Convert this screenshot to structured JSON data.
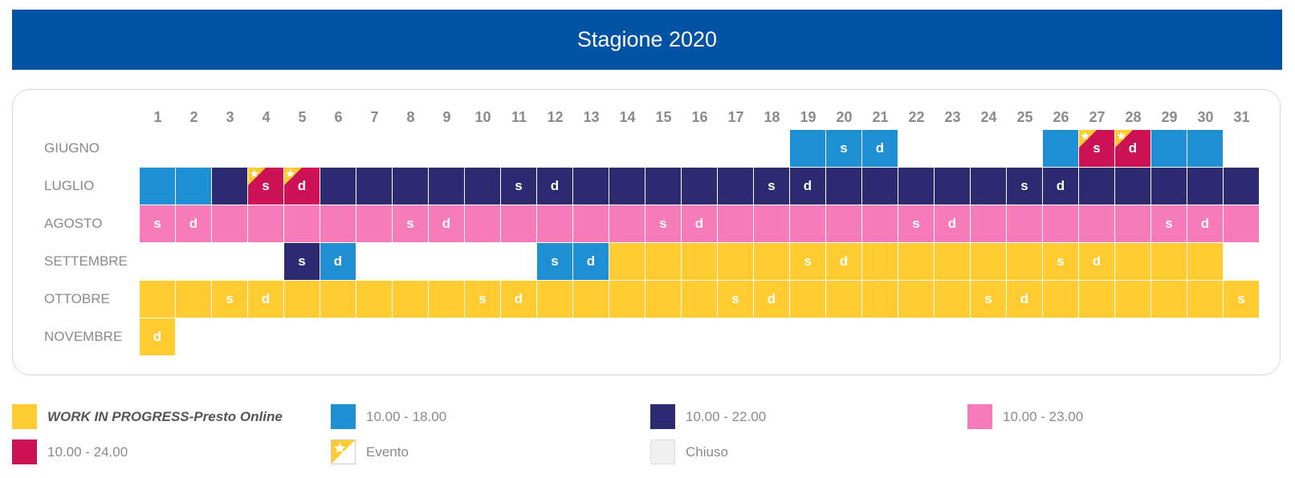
{
  "header": {
    "title": "Stagione 2020"
  },
  "days": [
    "1",
    "2",
    "3",
    "4",
    "5",
    "6",
    "7",
    "8",
    "9",
    "10",
    "11",
    "12",
    "13",
    "14",
    "15",
    "16",
    "17",
    "18",
    "19",
    "20",
    "21",
    "22",
    "23",
    "24",
    "25",
    "26",
    "27",
    "28",
    "29",
    "30",
    "31"
  ],
  "statuses": {
    "y": "#ffcb31",
    "b": "#1f8fd3",
    "n": "#2e2a72",
    "p": "#f77bbb",
    "r": "#cc1155",
    "c": "#efefef"
  },
  "months": [
    {
      "name": "GIUGNO",
      "cells": [
        null,
        null,
        null,
        null,
        null,
        null,
        null,
        null,
        null,
        null,
        null,
        null,
        null,
        null,
        null,
        null,
        null,
        null,
        {
          "k": "b"
        },
        {
          "k": "b",
          "t": "s"
        },
        {
          "k": "b",
          "t": "d"
        },
        null,
        null,
        null,
        null,
        {
          "k": "b"
        },
        {
          "k": "r",
          "t": "s",
          "e": true
        },
        {
          "k": "r",
          "t": "d",
          "e": true
        },
        {
          "k": "b"
        },
        {
          "k": "b"
        },
        null
      ]
    },
    {
      "name": "LUGLIO",
      "cells": [
        {
          "k": "b"
        },
        {
          "k": "b"
        },
        {
          "k": "n"
        },
        {
          "k": "r",
          "t": "s",
          "e": true
        },
        {
          "k": "r",
          "t": "d",
          "e": true
        },
        {
          "k": "n"
        },
        {
          "k": "n"
        },
        {
          "k": "n"
        },
        {
          "k": "n"
        },
        {
          "k": "n"
        },
        {
          "k": "n",
          "t": "s"
        },
        {
          "k": "n",
          "t": "d"
        },
        {
          "k": "n"
        },
        {
          "k": "n"
        },
        {
          "k": "n"
        },
        {
          "k": "n"
        },
        {
          "k": "n"
        },
        {
          "k": "n",
          "t": "s"
        },
        {
          "k": "n",
          "t": "d"
        },
        {
          "k": "n"
        },
        {
          "k": "n"
        },
        {
          "k": "n"
        },
        {
          "k": "n"
        },
        {
          "k": "n"
        },
        {
          "k": "n",
          "t": "s"
        },
        {
          "k": "n",
          "t": "d"
        },
        {
          "k": "n"
        },
        {
          "k": "n"
        },
        {
          "k": "n"
        },
        {
          "k": "n"
        },
        {
          "k": "n"
        }
      ]
    },
    {
      "name": "AGOSTO",
      "cells": [
        {
          "k": "p",
          "t": "s"
        },
        {
          "k": "p",
          "t": "d"
        },
        {
          "k": "p"
        },
        {
          "k": "p"
        },
        {
          "k": "p"
        },
        {
          "k": "p"
        },
        {
          "k": "p"
        },
        {
          "k": "p",
          "t": "s"
        },
        {
          "k": "p",
          "t": "d"
        },
        {
          "k": "p"
        },
        {
          "k": "p"
        },
        {
          "k": "p"
        },
        {
          "k": "p"
        },
        {
          "k": "p"
        },
        {
          "k": "p",
          "t": "s"
        },
        {
          "k": "p",
          "t": "d"
        },
        {
          "k": "p"
        },
        {
          "k": "p"
        },
        {
          "k": "p"
        },
        {
          "k": "p"
        },
        {
          "k": "p"
        },
        {
          "k": "p",
          "t": "s"
        },
        {
          "k": "p",
          "t": "d"
        },
        {
          "k": "p"
        },
        {
          "k": "p"
        },
        {
          "k": "p"
        },
        {
          "k": "p"
        },
        {
          "k": "p"
        },
        {
          "k": "p",
          "t": "s"
        },
        {
          "k": "p",
          "t": "d"
        },
        {
          "k": "p"
        }
      ]
    },
    {
      "name": "SETTEMBRE",
      "cells": [
        null,
        null,
        null,
        null,
        {
          "k": "n",
          "t": "s"
        },
        {
          "k": "b",
          "t": "d"
        },
        null,
        null,
        null,
        null,
        null,
        {
          "k": "b",
          "t": "s"
        },
        {
          "k": "b",
          "t": "d"
        },
        {
          "k": "y"
        },
        {
          "k": "y"
        },
        {
          "k": "y"
        },
        {
          "k": "y"
        },
        {
          "k": "y"
        },
        {
          "k": "y",
          "t": "s"
        },
        {
          "k": "y",
          "t": "d"
        },
        {
          "k": "y"
        },
        {
          "k": "y"
        },
        {
          "k": "y"
        },
        {
          "k": "y"
        },
        {
          "k": "y"
        },
        {
          "k": "y",
          "t": "s"
        },
        {
          "k": "y",
          "t": "d"
        },
        {
          "k": "y"
        },
        {
          "k": "y"
        },
        {
          "k": "y"
        },
        null
      ]
    },
    {
      "name": "OTTOBRE",
      "cells": [
        {
          "k": "y"
        },
        {
          "k": "y"
        },
        {
          "k": "y",
          "t": "s"
        },
        {
          "k": "y",
          "t": "d"
        },
        {
          "k": "y"
        },
        {
          "k": "y"
        },
        {
          "k": "y"
        },
        {
          "k": "y"
        },
        {
          "k": "y"
        },
        {
          "k": "y",
          "t": "s"
        },
        {
          "k": "y",
          "t": "d"
        },
        {
          "k": "y"
        },
        {
          "k": "y"
        },
        {
          "k": "y"
        },
        {
          "k": "y"
        },
        {
          "k": "y"
        },
        {
          "k": "y",
          "t": "s"
        },
        {
          "k": "y",
          "t": "d"
        },
        {
          "k": "y"
        },
        {
          "k": "y"
        },
        {
          "k": "y"
        },
        {
          "k": "y"
        },
        {
          "k": "y"
        },
        {
          "k": "y",
          "t": "s"
        },
        {
          "k": "y",
          "t": "d"
        },
        {
          "k": "y"
        },
        {
          "k": "y"
        },
        {
          "k": "y"
        },
        {
          "k": "y"
        },
        {
          "k": "y"
        },
        {
          "k": "y",
          "t": "s"
        }
      ]
    },
    {
      "name": "NOVEMBRE",
      "cells": [
        {
          "k": "y",
          "t": "d"
        }
      ]
    }
  ],
  "legend": [
    {
      "k": "y",
      "label": "WORK IN PROGRESS-Presto Online",
      "strong": true
    },
    {
      "k": "b",
      "label": "10.00 - 18.00"
    },
    {
      "k": "n",
      "label": "10.00 - 22.00"
    },
    {
      "k": "p",
      "label": "10.00 - 23.00"
    },
    {
      "k": "r",
      "label": "10.00 - 24.00"
    },
    {
      "k": "event",
      "label": "Evento"
    },
    {
      "k": "c",
      "label": "Chiuso"
    }
  ]
}
